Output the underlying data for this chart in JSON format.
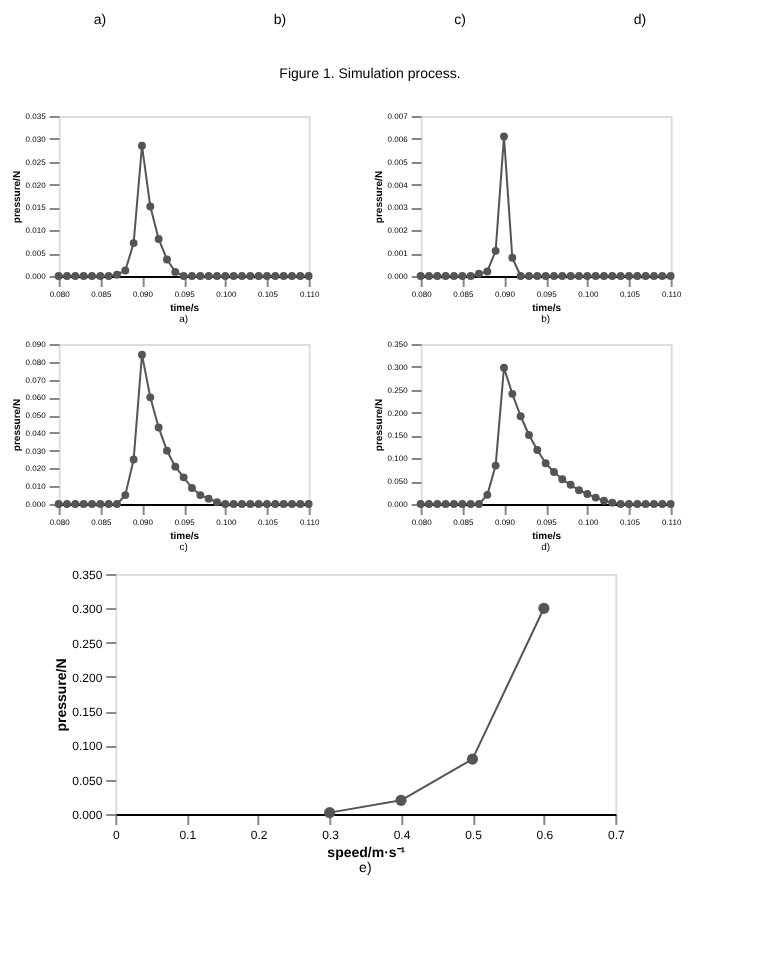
{
  "chart_data": [
    {
      "type": "other",
      "annotations": [
        "a)",
        "b)",
        "c)",
        "d)",
        "Figure 1. Simulation process."
      ]
    },
    {
      "type": "line",
      "title": "a)",
      "xlabel": "time/s",
      "ylabel": "pressure/N",
      "marker": "circle",
      "grid": false,
      "x": [
        0.08,
        0.081,
        0.082,
        0.083,
        0.084,
        0.085,
        0.086,
        0.087,
        0.088,
        0.089,
        0.09,
        0.091,
        0.092,
        0.093,
        0.094,
        0.095,
        0.096,
        0.097,
        0.098,
        0.099,
        0.1,
        0.101,
        0.102,
        0.103,
        0.104,
        0.105,
        0.106,
        0.107,
        0.108,
        0.109,
        0.11
      ],
      "series": [
        {
          "color": "#555555",
          "values": [
            0,
            0,
            0,
            0,
            0,
            0,
            0,
            0.0003,
            0.0012,
            0.0072,
            0.0285,
            0.0152,
            0.0081,
            0.0036,
            0.0009,
            0,
            0,
            0,
            0,
            0,
            0,
            0,
            0,
            0,
            0,
            0,
            0,
            0,
            0,
            0,
            0
          ]
        }
      ],
      "xlim": [
        0.08,
        0.11
      ],
      "xticks": [
        {
          "value": 0.08,
          "label": "0.080"
        },
        {
          "value": 0.085,
          "label": "0.085"
        },
        {
          "value": 0.09,
          "label": "0.090"
        },
        {
          "value": 0.095,
          "label": "0.095"
        },
        {
          "value": 0.1,
          "label": "0.100"
        },
        {
          "value": 0.105,
          "label": "0.105"
        },
        {
          "value": 0.11,
          "label": "0.110"
        }
      ],
      "ylim": [
        0,
        0.035
      ],
      "yticks": [
        {
          "value": 0,
          "label": "0.000"
        },
        {
          "value": 0.005,
          "label": "0.005"
        },
        {
          "value": 0.01,
          "label": "0.010"
        },
        {
          "value": 0.015,
          "label": "0.015"
        },
        {
          "value": 0.02,
          "label": "0.020"
        },
        {
          "value": 0.025,
          "label": "0.025"
        },
        {
          "value": 0.03,
          "label": "0.030"
        },
        {
          "value": 0.035,
          "label": "0.035"
        }
      ]
    },
    {
      "type": "line",
      "title": "b)",
      "xlabel": "time/s",
      "ylabel": "pressure/N",
      "marker": "circle",
      "grid": false,
      "x": [
        0.08,
        0.081,
        0.082,
        0.083,
        0.084,
        0.085,
        0.086,
        0.087,
        0.088,
        0.089,
        0.09,
        0.091,
        0.092,
        0.093,
        0.094,
        0.095,
        0.096,
        0.097,
        0.098,
        0.099,
        0.1,
        0.101,
        0.102,
        0.103,
        0.104,
        0.105,
        0.106,
        0.107,
        0.108,
        0.109,
        0.11
      ],
      "series": [
        {
          "color": "#555555",
          "values": [
            0,
            0,
            0,
            0,
            0,
            0,
            0,
            0.0001,
            0.0002,
            0.0011,
            0.0061,
            0.0008,
            0,
            0,
            0,
            0,
            0,
            0,
            0,
            0,
            0,
            0,
            0,
            0,
            0,
            0,
            0,
            0,
            0,
            0,
            0
          ]
        }
      ],
      "xlim": [
        0.08,
        0.11
      ],
      "xticks": [
        {
          "value": 0.08,
          "label": "0.080"
        },
        {
          "value": 0.085,
          "label": "0.085"
        },
        {
          "value": 0.09,
          "label": "0.090"
        },
        {
          "value": 0.095,
          "label": "0.095"
        },
        {
          "value": 0.1,
          "label": "0.100"
        },
        {
          "value": 0.105,
          "label": "0.105"
        },
        {
          "value": 0.11,
          "label": "0.110"
        }
      ],
      "ylim": [
        0,
        0.007
      ],
      "yticks": [
        {
          "value": 0,
          "label": "0.000"
        },
        {
          "value": 0.001,
          "label": "0.001"
        },
        {
          "value": 0.002,
          "label": "0.002"
        },
        {
          "value": 0.003,
          "label": "0.003"
        },
        {
          "value": 0.004,
          "label": "0.004"
        },
        {
          "value": 0.005,
          "label": "0.005"
        },
        {
          "value": 0.006,
          "label": "0.006"
        },
        {
          "value": 0.007,
          "label": "0.007"
        }
      ]
    },
    {
      "type": "line",
      "title": "c)",
      "xlabel": "time/s",
      "ylabel": "pressure/N",
      "marker": "circle",
      "grid": false,
      "x": [
        0.08,
        0.081,
        0.082,
        0.083,
        0.084,
        0.085,
        0.086,
        0.087,
        0.088,
        0.089,
        0.09,
        0.091,
        0.092,
        0.093,
        0.094,
        0.095,
        0.096,
        0.097,
        0.098,
        0.099,
        0.1,
        0.101,
        0.102,
        0.103,
        0.104,
        0.105,
        0.106,
        0.107,
        0.108,
        0.109,
        0.11
      ],
      "series": [
        {
          "color": "#555555",
          "values": [
            0,
            0,
            0,
            0,
            0,
            0,
            0,
            0,
            0.005,
            0.025,
            0.084,
            0.06,
            0.043,
            0.03,
            0.021,
            0.015,
            0.009,
            0.005,
            0.003,
            0.001,
            0,
            0,
            0,
            0,
            0,
            0,
            0,
            0,
            0,
            0,
            0
          ]
        }
      ],
      "xlim": [
        0.08,
        0.11
      ],
      "xticks": [
        {
          "value": 0.08,
          "label": "0.080"
        },
        {
          "value": 0.085,
          "label": "0.085"
        },
        {
          "value": 0.09,
          "label": "0.090"
        },
        {
          "value": 0.095,
          "label": "0.095"
        },
        {
          "value": 0.1,
          "label": "0.100"
        },
        {
          "value": 0.105,
          "label": "0.105"
        },
        {
          "value": 0.11,
          "label": "0.110"
        }
      ],
      "ylim": [
        0,
        0.09
      ],
      "yticks": [
        {
          "value": 0,
          "label": "0.000"
        },
        {
          "value": 0.01,
          "label": "0.010"
        },
        {
          "value": 0.02,
          "label": "0.020"
        },
        {
          "value": 0.03,
          "label": "0.030"
        },
        {
          "value": 0.04,
          "label": "0.040"
        },
        {
          "value": 0.05,
          "label": "0.050"
        },
        {
          "value": 0.06,
          "label": "0.060"
        },
        {
          "value": 0.07,
          "label": "0.070"
        },
        {
          "value": 0.08,
          "label": "0.080"
        },
        {
          "value": 0.09,
          "label": "0.090"
        }
      ]
    },
    {
      "type": "line",
      "title": "d)",
      "xlabel": "time/s",
      "ylabel": "pressure/N",
      "marker": "circle",
      "grid": false,
      "x": [
        0.08,
        0.081,
        0.082,
        0.083,
        0.084,
        0.085,
        0.086,
        0.087,
        0.088,
        0.089,
        0.09,
        0.091,
        0.092,
        0.093,
        0.094,
        0.095,
        0.096,
        0.097,
        0.098,
        0.099,
        0.1,
        0.101,
        0.102,
        0.103,
        0.104,
        0.105,
        0.106,
        0.107,
        0.108,
        0.109,
        0.11
      ],
      "series": [
        {
          "color": "#555555",
          "values": [
            0,
            0,
            0,
            0,
            0,
            0,
            0,
            0,
            0.02,
            0.084,
            0.298,
            0.241,
            0.192,
            0.151,
            0.118,
            0.089,
            0.07,
            0.054,
            0.042,
            0.03,
            0.022,
            0.014,
            0.007,
            0.003,
            0,
            0,
            0,
            0,
            0,
            0,
            0
          ]
        }
      ],
      "xlim": [
        0.08,
        0.11
      ],
      "xticks": [
        {
          "value": 0.08,
          "label": "0.080"
        },
        {
          "value": 0.085,
          "label": "0.085"
        },
        {
          "value": 0.09,
          "label": "0.090"
        },
        {
          "value": 0.095,
          "label": "0.095"
        },
        {
          "value": 0.1,
          "label": "0.100"
        },
        {
          "value": 0.105,
          "label": "0.105"
        },
        {
          "value": 0.11,
          "label": "0.110"
        }
      ],
      "ylim": [
        0,
        0.35
      ],
      "yticks": [
        {
          "value": 0,
          "label": "0.000"
        },
        {
          "value": 0.05,
          "label": "0.050"
        },
        {
          "value": 0.1,
          "label": "0.100"
        },
        {
          "value": 0.15,
          "label": "0.150"
        },
        {
          "value": 0.2,
          "label": "0.200"
        },
        {
          "value": 0.25,
          "label": "0.250"
        },
        {
          "value": 0.3,
          "label": "0.300"
        },
        {
          "value": 0.35,
          "label": "0.350"
        }
      ]
    },
    {
      "type": "line",
      "title": "e)",
      "xlabel": "speed/m·s⁻¹",
      "ylabel": "pressure/N",
      "marker": "circle",
      "grid": false,
      "x": [
        0.3,
        0.4,
        0.5,
        0.6
      ],
      "series": [
        {
          "color": "#555555",
          "values": [
            0.002,
            0.02,
            0.08,
            0.3
          ]
        }
      ],
      "xlim": [
        0,
        0.7
      ],
      "xticks": [
        0,
        0.1,
        0.2,
        0.3,
        0.4,
        0.5,
        0.6,
        0.7
      ],
      "ylim": [
        0,
        0.35
      ],
      "yticks": [
        {
          "value": 0,
          "label": "0.000"
        },
        {
          "value": 0.05,
          "label": "0.050"
        },
        {
          "value": 0.1,
          "label": "0.100"
        },
        {
          "value": 0.15,
          "label": "0.150"
        },
        {
          "value": 0.2,
          "label": "0.200"
        },
        {
          "value": 0.25,
          "label": "0.250"
        },
        {
          "value": 0.3,
          "label": "0.300"
        },
        {
          "value": 0.35,
          "label": "0.350"
        }
      ]
    }
  ]
}
